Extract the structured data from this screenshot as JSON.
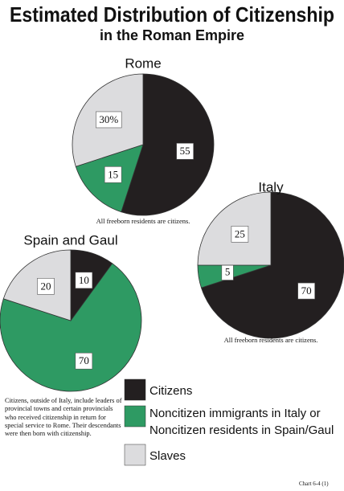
{
  "title": "Estimated Distribution of Citizenship",
  "subtitle": "in the Roman Empire",
  "legend": {
    "labels": [
      "Citizens",
      "Noncitizen immigrants in Italy or Noncitizen residents in Spain/Gaul",
      "Slaves"
    ],
    "colors": [
      "#231f20",
      "#2e9a63",
      "#dcdcde"
    ]
  },
  "chart_data": [
    {
      "type": "pie",
      "title": "Rome",
      "values": [
        55,
        15,
        30
      ],
      "value_labels": [
        "55",
        "15",
        "30%"
      ],
      "note": "All freeborn residents are citizens."
    },
    {
      "type": "pie",
      "title": "Italy",
      "values": [
        70,
        5,
        25
      ],
      "note": "All freeborn residents are citizens."
    },
    {
      "type": "pie",
      "title": "Spain and Gaul",
      "values": [
        10,
        70,
        20
      ]
    }
  ],
  "footnote": "Citizens, outside of Italy, include leaders of provincial towns and certain provincials who received citizenship in return for special service to Rome. Their descendants were then born with citizenship.",
  "chart_id": "Chart 6-4 (1)"
}
